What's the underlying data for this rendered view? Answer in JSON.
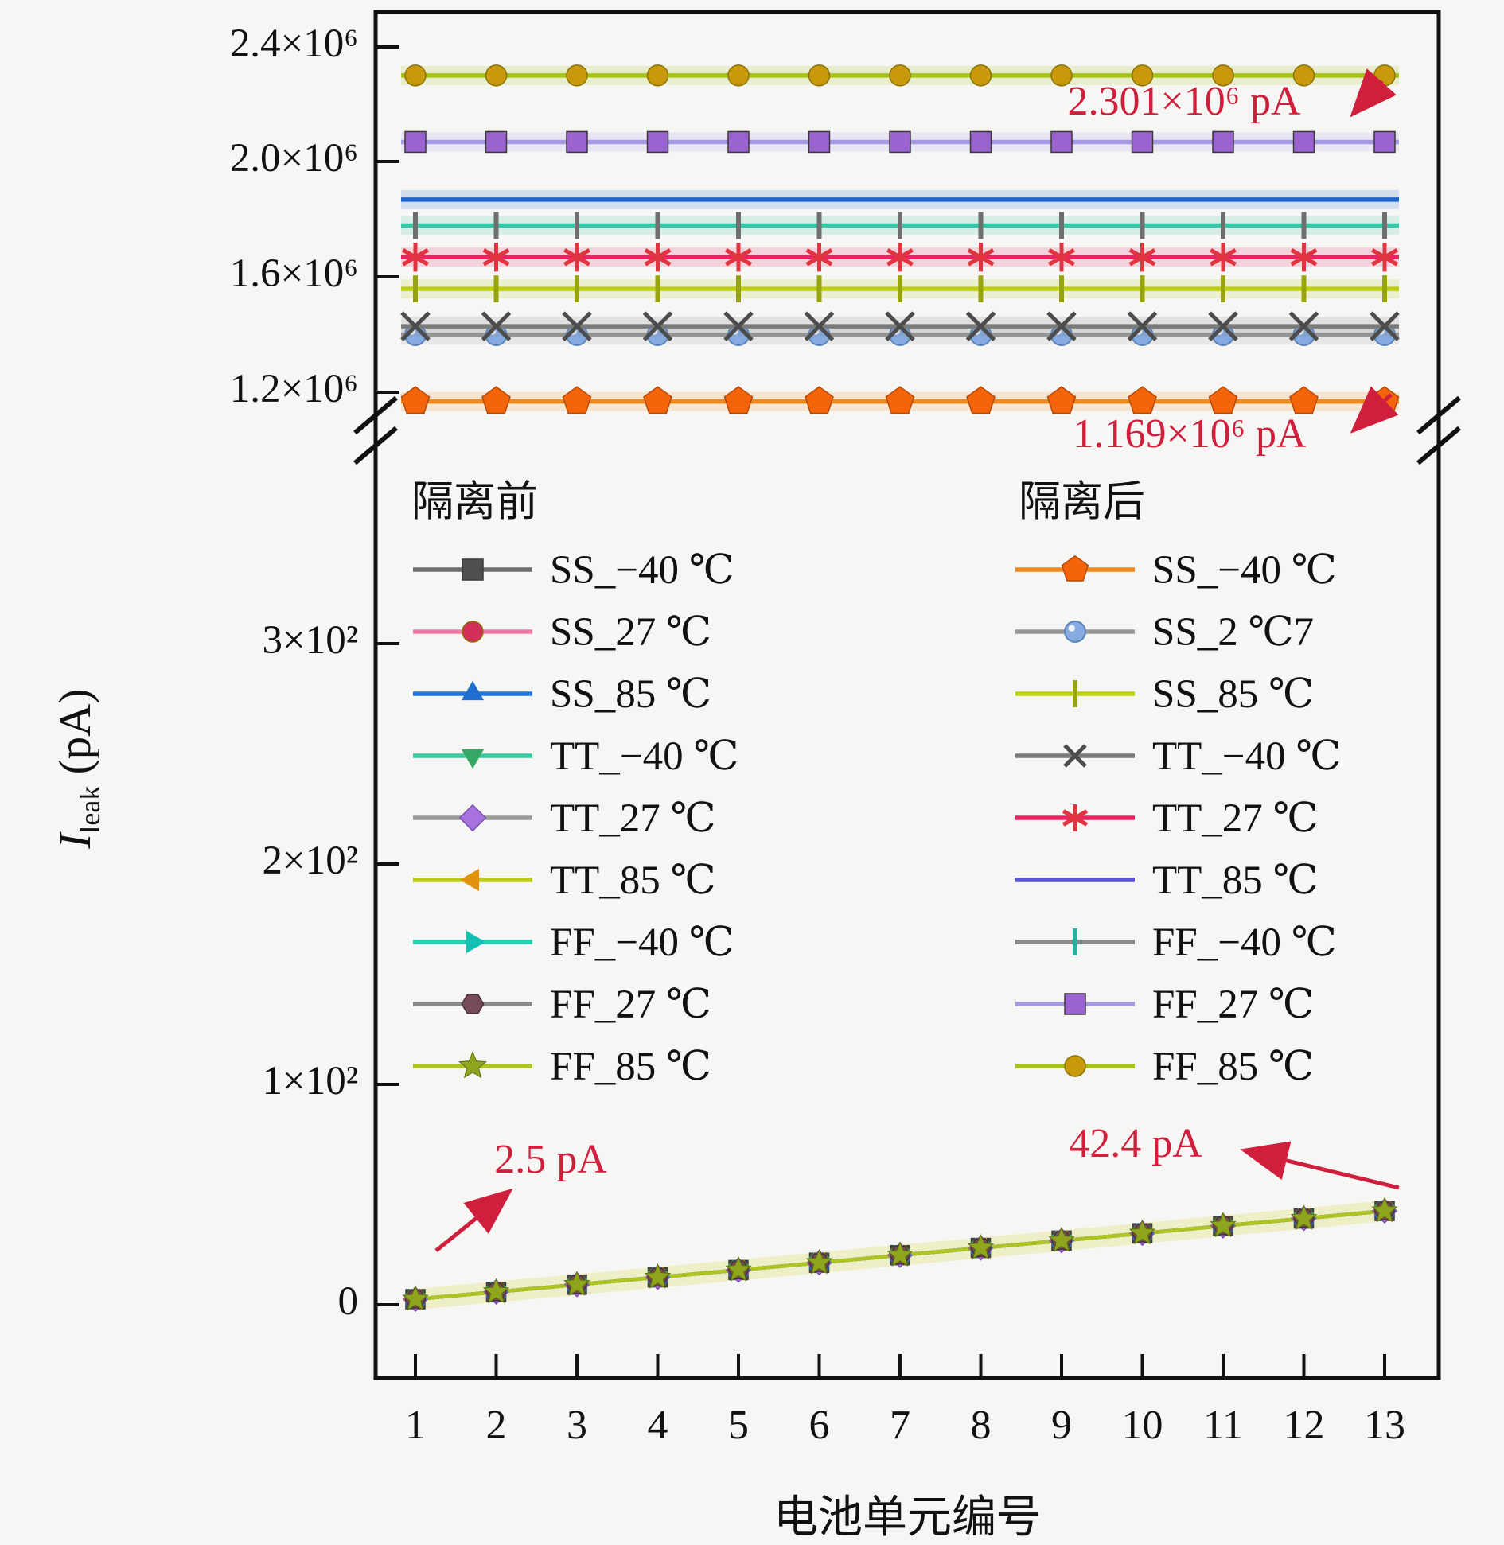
{
  "figure": {
    "background": "#f6f6f4",
    "annotation_red": "#d01f3c",
    "frame_color": "#111111"
  },
  "axes": {
    "y_title": {
      "symbol": "I",
      "subscript": "leak",
      "unit": " (pA)"
    },
    "x_title": "电池单元编号",
    "top_ticks": [
      "2.4×10⁶",
      "2.0×10⁶",
      "1.6×10⁶",
      "1.2×10⁶"
    ],
    "bottom_ticks": [
      "3×10²",
      "2×10²",
      "1×10²",
      "0"
    ],
    "x_ticks": [
      "1",
      "2",
      "3",
      "4",
      "5",
      "6",
      "7",
      "8",
      "9",
      "10",
      "11",
      "12",
      "13"
    ]
  },
  "legend": {
    "before": {
      "title": "隔离前",
      "items": [
        {
          "label": "SS_−40 ℃",
          "marker": "square",
          "marker_color": "#4f4f4f",
          "line_color": "#6e6e6e"
        },
        {
          "label": "SS_27 ℃",
          "marker": "circle",
          "marker_color": "#d23059",
          "line_color": "#f07ba6"
        },
        {
          "label": "SS_85 ℃",
          "marker": "tri-up",
          "marker_color": "#1f6fd0",
          "line_color": "#2277dd"
        },
        {
          "label": "TT_−40 ℃",
          "marker": "tri-down",
          "marker_color": "#35a865",
          "line_color": "#38c9a0"
        },
        {
          "label": "TT_27 ℃",
          "marker": "diamond",
          "marker_color": "#a873e0",
          "line_color": "#9a9a9a"
        },
        {
          "label": "TT_85 ℃",
          "marker": "tri-left",
          "marker_color": "#e0920e",
          "line_color": "#b9cb18"
        },
        {
          "label": "FF_−40 ℃",
          "marker": "tri-right",
          "marker_color": "#14c0b4",
          "line_color": "#25d2b2"
        },
        {
          "label": "FF_27 ℃",
          "marker": "hexagon",
          "marker_color": "#754b59",
          "line_color": "#8a8a8a"
        },
        {
          "label": "FF_85 ℃",
          "marker": "star",
          "marker_color": "#8fa51d",
          "line_color": "#aec423"
        }
      ]
    },
    "after": {
      "title": "隔离后",
      "items": [
        {
          "label": "SS_−40 ℃",
          "marker": "pentagon",
          "marker_color": "#f4640a",
          "line_color": "#f08a1e"
        },
        {
          "label": "SS_2 ℃7",
          "marker": "sphere",
          "marker_color": "#85abe0",
          "line_color": "#989898"
        },
        {
          "label": "SS_85 ℃",
          "marker": "vline",
          "marker_color": "#97a40c",
          "line_color": "#bccf10"
        },
        {
          "label": "TT_−40 ℃",
          "marker": "xmark",
          "marker_color": "#4c4c4c",
          "line_color": "#7a7a7a"
        },
        {
          "label": "TT_27 ℃",
          "marker": "asterisk",
          "marker_color": "#e03440",
          "line_color": "#e82560"
        },
        {
          "label": "TT_85 ℃",
          "marker": "none",
          "marker_color": "#5b53d4",
          "line_color": "#5b53d4"
        },
        {
          "label": "FF_−40 ℃",
          "marker": "vline",
          "marker_color": "#22b4a2",
          "line_color": "#8a8a8a"
        },
        {
          "label": "FF_27 ℃",
          "marker": "square",
          "marker_color": "#9a63d0",
          "line_color": "#a79ae2"
        },
        {
          "label": "FF_85 ℃",
          "marker": "circle",
          "marker_color": "#c8990b",
          "line_color": "#a6c214"
        }
      ]
    }
  },
  "annotations": {
    "after_max": {
      "text": "2.301×10⁶ pA"
    },
    "after_min": {
      "text": "1.169×10⁶ pA"
    },
    "before_start": {
      "text": "2.5 pA"
    },
    "before_end": {
      "text": "42.4 pA"
    }
  },
  "chart_data": {
    "type": "line",
    "x": [
      1,
      2,
      3,
      4,
      5,
      6,
      7,
      8,
      9,
      10,
      11,
      12,
      13
    ],
    "xlabel": "电池单元编号",
    "ylabel": "I_leak (pA)",
    "broken_y_axis": true,
    "top_panel_tick_values_pA": [
      2400000,
      2000000,
      1600000,
      1200000
    ],
    "bottom_panel_tick_values_pA": [
      300,
      200,
      100,
      0
    ],
    "before_values_pA": [
      2.5,
      5.8,
      9.1,
      12.4,
      15.7,
      19.0,
      22.4,
      25.7,
      29.0,
      32.3,
      35.7,
      39.0,
      42.4
    ],
    "annotated_values": {
      "after_max_pA": 2301000,
      "after_min_pA": 1169000,
      "before_start_pA": 2.5,
      "before_end_pA": 42.4
    },
    "series": [
      {
        "group": "隔离前",
        "name": "SS_−40 ℃",
        "marker": "square",
        "marker_color": "#4f4f4f",
        "line_color": "#6e6e6e",
        "values": "before_values_pA"
      },
      {
        "group": "隔离前",
        "name": "SS_27 ℃",
        "marker": "circle",
        "marker_color": "#d23059",
        "line_color": "#f07ba6",
        "values": "before_values_pA"
      },
      {
        "group": "隔离前",
        "name": "SS_85 ℃",
        "marker": "tri-up",
        "marker_color": "#1f6fd0",
        "line_color": "#2277dd",
        "values": "before_values_pA"
      },
      {
        "group": "隔离前",
        "name": "TT_−40 ℃",
        "marker": "tri-down",
        "marker_color": "#35a865",
        "line_color": "#38c9a0",
        "values": "before_values_pA"
      },
      {
        "group": "隔离前",
        "name": "TT_27 ℃",
        "marker": "diamond",
        "marker_color": "#a873e0",
        "line_color": "#9a9a9a",
        "values": "before_values_pA"
      },
      {
        "group": "隔离前",
        "name": "TT_85 ℃",
        "marker": "tri-left",
        "marker_color": "#e0920e",
        "line_color": "#b9cb18",
        "values": "before_values_pA"
      },
      {
        "group": "隔离前",
        "name": "FF_−40 ℃",
        "marker": "tri-right",
        "marker_color": "#14c0b4",
        "line_color": "#25d2b2",
        "values": "before_values_pA"
      },
      {
        "group": "隔离前",
        "name": "FF_27 ℃",
        "marker": "hexagon",
        "marker_color": "#754b59",
        "line_color": "#8a8a8a",
        "values": "before_values_pA"
      },
      {
        "group": "隔离前",
        "name": "FF_85 ℃",
        "marker": "star",
        "marker_color": "#8fa51d",
        "line_color": "#aec423",
        "values": "before_values_pA"
      },
      {
        "group": "隔离后",
        "name": "SS_−40 ℃",
        "marker": "pentagon",
        "marker_color": "#f4640a",
        "line_color": "#f08a1e",
        "value_pA": 1169000
      },
      {
        "group": "隔离后",
        "name": "SS_2 ℃7",
        "marker": "sphere",
        "marker_color": "#85abe0",
        "line_color": "#989898",
        "value_pA": 1400000
      },
      {
        "group": "隔离后",
        "name": "SS_85 ℃",
        "marker": "vline",
        "marker_color": "#97a40c",
        "line_color": "#bccf10",
        "value_pA": 1560000
      },
      {
        "group": "隔离后",
        "name": "TT_−40 ℃",
        "marker": "xmark",
        "marker_color": "#4c4c4c",
        "line_color": "#7a7a7a",
        "value_pA": 1430000
      },
      {
        "group": "隔离后",
        "name": "TT_27 ℃",
        "marker": "asterisk",
        "marker_color": "#e03440",
        "line_color": "#e82560",
        "value_pA": 1670000
      },
      {
        "group": "隔离后",
        "name": "TT_85 ℃",
        "marker": "none",
        "marker_color": "#5b53d4",
        "line_color": "#1f66cc",
        "value_pA": 1870000
      },
      {
        "group": "隔离后",
        "name": "FF_−40 ℃",
        "marker": "vline",
        "marker_color": "#6f6f6f",
        "line_color": "#38c7a6",
        "value_pA": 1780000
      },
      {
        "group": "隔离后",
        "name": "FF_27 ℃",
        "marker": "square",
        "marker_color": "#9a63d0",
        "line_color": "#a79ae2",
        "value_pA": 2070000
      },
      {
        "group": "隔离后",
        "name": "FF_85 ℃",
        "marker": "circle",
        "marker_color": "#c8990b",
        "line_color": "#a6c214",
        "value_pA": 2301000
      }
    ]
  }
}
